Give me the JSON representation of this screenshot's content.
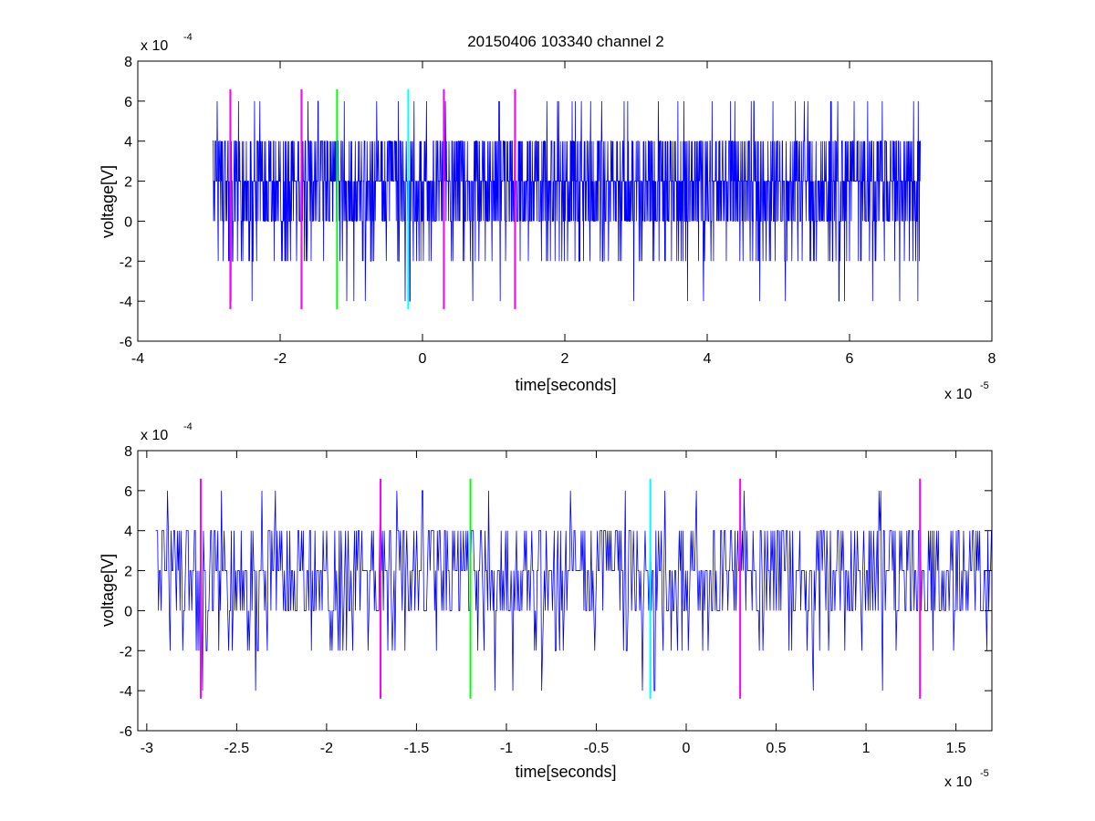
{
  "colors": {
    "signal": "#0000ff",
    "marker_magenta": "#ff00ff",
    "marker_green": "#00ff00",
    "marker_cyan": "#00ffff",
    "axes": "#000000",
    "background": "#ffffff"
  },
  "chart_data": [
    {
      "type": "line",
      "title": "20150406 103340 channel 2",
      "xlabel": "time[seconds]",
      "ylabel": "voltage[V]",
      "x_exponent": {
        "base": "x 10",
        "power": "-5"
      },
      "y_exponent": {
        "base": "x 10",
        "power": "-4"
      },
      "xlim": [
        -4,
        8
      ],
      "ylim": [
        -6,
        8
      ],
      "x_ticks": [
        -4,
        -2,
        0,
        2,
        4,
        6,
        8
      ],
      "y_ticks": [
        -6,
        -4,
        -2,
        0,
        2,
        4,
        6,
        8
      ],
      "grid": false,
      "series": [
        {
          "color": "#0000ff",
          "x_range": [
            -2.95,
            7.0
          ],
          "levels": [
            -4,
            -2,
            0,
            2,
            4,
            6
          ],
          "note": "dense quantized noise trace"
        }
      ],
      "markers": [
        {
          "x": -2.7,
          "color": "magenta",
          "ymin": -4.4,
          "ymax": 6.6
        },
        {
          "x": -1.7,
          "color": "magenta",
          "ymin": -4.4,
          "ymax": 6.6
        },
        {
          "x": -1.2,
          "color": "green",
          "ymin": -4.4,
          "ymax": 6.6
        },
        {
          "x": -0.2,
          "color": "cyan",
          "ymin": -4.4,
          "ymax": 6.6
        },
        {
          "x": 0.3,
          "color": "magenta",
          "ymin": -4.4,
          "ymax": 6.6
        },
        {
          "x": 1.3,
          "color": "magenta",
          "ymin": -4.4,
          "ymax": 6.6
        }
      ]
    },
    {
      "type": "line",
      "title": "",
      "xlabel": "time[seconds]",
      "ylabel": "voltage[V]",
      "x_exponent": {
        "base": "x 10",
        "power": "-5"
      },
      "y_exponent": {
        "base": "x 10",
        "power": "-4"
      },
      "xlim": [
        -3.05,
        1.7
      ],
      "ylim": [
        -6,
        8
      ],
      "x_ticks": [
        -3,
        -2.5,
        -2,
        -1.5,
        -1,
        -0.5,
        0,
        0.5,
        1,
        1.5
      ],
      "y_ticks": [
        -6,
        -4,
        -2,
        0,
        2,
        4,
        6,
        8
      ],
      "grid": false,
      "series": [
        {
          "color": "#0000ff",
          "x_range": [
            -2.95,
            1.7
          ],
          "levels": [
            -4,
            -2,
            0,
            2,
            4,
            6
          ],
          "note": "zoomed view of same quantized noise trace"
        }
      ],
      "markers": [
        {
          "x": -2.7,
          "color": "magenta",
          "ymin": -4.4,
          "ymax": 6.6
        },
        {
          "x": -1.7,
          "color": "magenta",
          "ymin": -4.4,
          "ymax": 6.6
        },
        {
          "x": -1.2,
          "color": "green",
          "ymin": -4.4,
          "ymax": 6.6
        },
        {
          "x": -0.2,
          "color": "cyan",
          "ymin": -4.4,
          "ymax": 6.6
        },
        {
          "x": 0.3,
          "color": "magenta",
          "ymin": -4.4,
          "ymax": 6.6
        },
        {
          "x": 1.3,
          "color": "magenta",
          "ymin": -4.4,
          "ymax": 6.6
        }
      ]
    }
  ]
}
